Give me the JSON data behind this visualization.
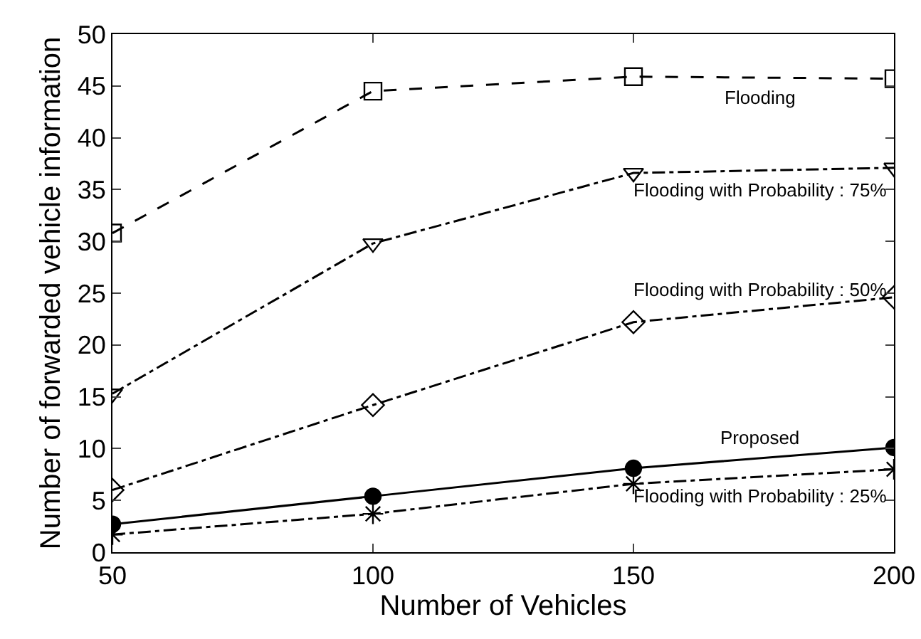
{
  "chart_data": {
    "type": "line",
    "xlabel": "Number of Vehicles",
    "ylabel": "Number of forwarded vehicle information",
    "x": [
      50,
      100,
      150,
      200
    ],
    "xlim": [
      50,
      200
    ],
    "xticks": [
      50,
      100,
      150,
      200
    ],
    "ylim": [
      0,
      50
    ],
    "yticks": [
      0,
      5,
      10,
      15,
      20,
      25,
      30,
      35,
      40,
      45,
      50
    ],
    "grid": false,
    "legend": false,
    "series": [
      {
        "name": "Flooding",
        "color": "#000000",
        "marker": "square",
        "line_style": "dashed",
        "values": [
          30.8,
          44.5,
          45.9,
          45.7
        ]
      },
      {
        "name": "Flooding with Probability : 75%",
        "color": "#000000",
        "marker": "triangle",
        "line_style": "dashdot",
        "values": [
          15.3,
          29.8,
          36.6,
          37.1
        ]
      },
      {
        "name": "Flooding with Probability : 50%",
        "color": "#000000",
        "marker": "diamond",
        "line_style": "dashdot",
        "values": [
          6.0,
          14.2,
          22.2,
          24.6
        ]
      },
      {
        "name": "Proposed",
        "color": "#000000",
        "marker": "circle",
        "line_style": "solid",
        "values": [
          2.7,
          5.4,
          8.1,
          10.1
        ]
      },
      {
        "name": "Flooding with Probability : 25%",
        "color": "#000000",
        "marker": "cross",
        "line_style": "dashdot",
        "values": [
          1.7,
          3.7,
          6.6,
          8.0
        ]
      }
    ]
  }
}
